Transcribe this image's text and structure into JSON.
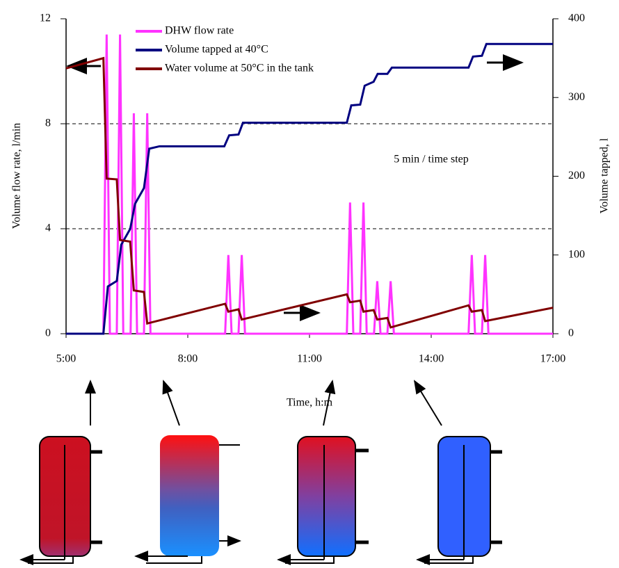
{
  "chart_data": {
    "type": "line",
    "x_label": "Time, h:m",
    "y_label": "Volume flow rate, l/min",
    "y2_label": "Volume tapped, l",
    "annotation": "5 min / time step",
    "xlim": [
      5,
      17
    ],
    "xticks": [
      {
        "value": 5,
        "label": "5:00"
      },
      {
        "value": 8,
        "label": "8:00"
      },
      {
        "value": 11,
        "label": "11:00"
      },
      {
        "value": 14,
        "label": "14:00"
      },
      {
        "value": 17,
        "label": "17:00"
      }
    ],
    "ylim": [
      0,
      12
    ],
    "yticks": [
      0,
      4,
      8,
      12
    ],
    "y2lim": [
      0,
      400
    ],
    "y2ticks": [
      0,
      100,
      200,
      300,
      400
    ],
    "grid": true,
    "legend": "top-left",
    "series": [
      {
        "name": "DHW flow rate",
        "color": "#ff33ff",
        "axis": "y",
        "x": [
          5,
          5.92,
          6,
          6.08,
          6.25,
          6.33,
          6.41,
          6.59,
          6.67,
          6.75,
          6.92,
          7,
          7.08,
          8.92,
          9,
          9.08,
          9.25,
          9.33,
          9.41,
          11.92,
          12,
          12.08,
          12.25,
          12.33,
          12.41,
          12.59,
          12.67,
          12.75,
          12.92,
          13,
          13.08,
          14.92,
          15,
          15.08,
          15.25,
          15.33,
          15.41,
          17
        ],
        "values": [
          0,
          0,
          11.4,
          0,
          0,
          11.4,
          0,
          0,
          8.4,
          0,
          0,
          8.4,
          0,
          0,
          3,
          0,
          0,
          3,
          0,
          0,
          5,
          0,
          0,
          5,
          0,
          0,
          2,
          0,
          0,
          2,
          0,
          0,
          3,
          0,
          0,
          3,
          0,
          0
        ]
      },
      {
        "name": "Volume tapped at 40°C",
        "color": "#000080",
        "axis": "y2",
        "x": [
          5,
          5.92,
          6.03,
          6.25,
          6.36,
          6.58,
          6.7,
          6.92,
          7.05,
          7.3,
          8.9,
          9.02,
          9.25,
          9.36,
          11.92,
          12.03,
          12.25,
          12.36,
          12.58,
          12.68,
          12.92,
          13.03,
          14.92,
          15.03,
          15.25,
          15.36,
          17
        ],
        "values": [
          0,
          0,
          60,
          67,
          113,
          133,
          165,
          185,
          235,
          238,
          238,
          252,
          253,
          268,
          268,
          290,
          291,
          315,
          320,
          330,
          330,
          338,
          338,
          352,
          353,
          368,
          368
        ]
      },
      {
        "name": "Water volume at 50°C in the tank",
        "color": "#800000",
        "axis": "y2",
        "x": [
          5,
          5.92,
          6.0,
          6.25,
          6.33,
          6.58,
          6.67,
          6.92,
          7.0,
          8.92,
          9.0,
          9.25,
          9.33,
          11.92,
          12.0,
          12.25,
          12.33,
          12.58,
          12.67,
          12.92,
          13.0,
          14.92,
          15.0,
          15.25,
          15.33,
          17
        ],
        "values": [
          337,
          350,
          197,
          196,
          119,
          117,
          55,
          53,
          13,
          38,
          28,
          31,
          18,
          50,
          40,
          42,
          28,
          30,
          18,
          20,
          8,
          36,
          28,
          30,
          16,
          33
        ]
      }
    ]
  }
}
